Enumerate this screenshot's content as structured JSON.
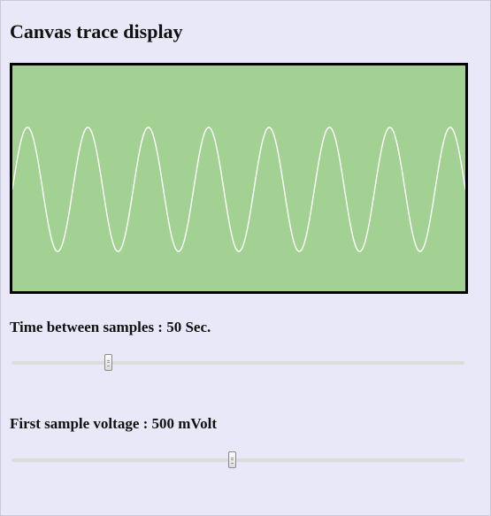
{
  "page": {
    "title": "Canvas trace display",
    "background_color": "#e8e8f8"
  },
  "trace": {
    "background_color": "#a3d193",
    "line_color": "#ffffff",
    "cycles": 7.5,
    "amplitude_fraction": 0.55
  },
  "controls": {
    "time": {
      "label": "Time between samples : 50 Sec.",
      "value": 50,
      "unit": "Sec.",
      "position_fraction": 0.215
    },
    "voltage": {
      "label": "First sample voltage : 500 mVolt",
      "value": 500,
      "unit": "mVolt",
      "position_fraction": 0.488
    }
  }
}
